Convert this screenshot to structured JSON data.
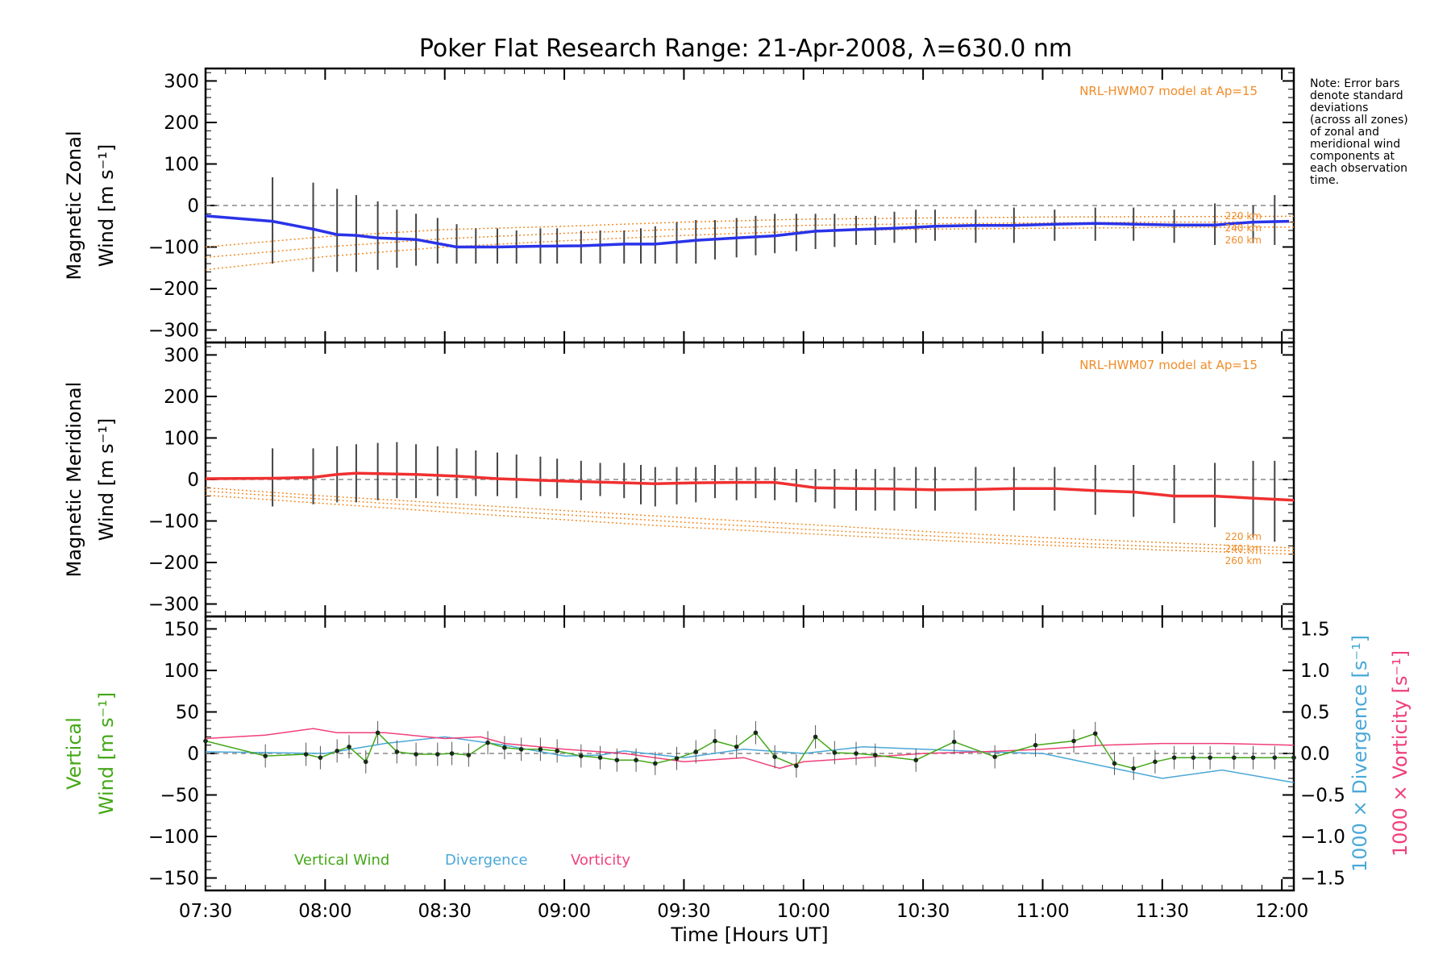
{
  "chart_data": [
    {
      "type": "line",
      "panel": "zonal",
      "title": "Poker Flat Research Range: 21-Apr-2008, λ=630.0 nm",
      "ylabel_line1": "Magnetic Zonal",
      "ylabel_line2": "Wind [m s⁻¹]",
      "ylim": [
        -330,
        330
      ],
      "yticks": [
        "300",
        "200",
        "100",
        "0",
        "−100",
        "−200",
        "−300"
      ],
      "model_label": "NRL-HWM07 model at Ap=15",
      "model_altitude_labels": [
        "220 km",
        "240 km",
        "260 km"
      ],
      "note": [
        "Note: Error bars",
        "denote standard",
        "deviations",
        "(across all zones)",
        "of zonal and",
        "meridional wind",
        "components at",
        "each observation",
        "time."
      ],
      "colors": {
        "mean": "#2a33e8",
        "model": "#f08c28",
        "errorbar": "#444444"
      },
      "series": [
        {
          "x": [
            7.5,
            7.78,
            7.95,
            8.05,
            8.13,
            8.22,
            8.38,
            8.55,
            8.72,
            8.9,
            9.07,
            9.25,
            9.38,
            9.55,
            9.72,
            9.88,
            10.05,
            10.22,
            10.38,
            10.55,
            10.72,
            10.88,
            11.05,
            11.22,
            11.38,
            11.55,
            11.72,
            11.88,
            12.03
          ],
          "y": [
            -25,
            -38,
            -57,
            -70,
            -72,
            -78,
            -82,
            -100,
            -100,
            -98,
            -97,
            -93,
            -93,
            -84,
            -78,
            -73,
            -62,
            -58,
            -55,
            -50,
            -48,
            -48,
            -45,
            -43,
            -45,
            -47,
            -47,
            -40,
            -38
          ]
        }
      ],
      "model": [
        {
          "x": [
            7.5,
            8.0,
            8.5,
            9.0,
            9.5,
            10.0,
            10.5,
            11.0,
            11.5,
            12.05
          ],
          "y": [
            -100,
            -75,
            -58,
            -50,
            -40,
            -33,
            -30,
            -28,
            -27,
            -26
          ]
        },
        {
          "x": [
            7.5,
            8.0,
            8.5,
            9.0,
            9.5,
            10.0,
            10.5,
            11.0,
            11.5,
            12.05
          ],
          "y": [
            -125,
            -100,
            -80,
            -67,
            -57,
            -48,
            -44,
            -42,
            -40,
            -40
          ]
        },
        {
          "x": [
            7.5,
            8.0,
            8.5,
            9.0,
            9.5,
            10.0,
            10.5,
            11.0,
            11.5,
            12.05
          ],
          "y": [
            -155,
            -123,
            -100,
            -85,
            -72,
            -62,
            -57,
            -55,
            -53,
            -52
          ]
        }
      ],
      "errorbars": {
        "x": [
          7.78,
          7.95,
          8.05,
          8.13,
          8.22,
          8.3,
          8.38,
          8.47,
          8.55,
          8.63,
          8.72,
          8.8,
          8.9,
          8.97,
          9.07,
          9.15,
          9.25,
          9.32,
          9.38,
          9.47,
          9.55,
          9.63,
          9.72,
          9.8,
          9.88,
          9.97,
          10.05,
          10.13,
          10.22,
          10.3,
          10.38,
          10.47,
          10.55,
          10.72,
          10.88,
          11.05,
          11.22,
          11.38,
          11.55,
          11.72,
          11.88,
          11.97
        ],
        "lo": [
          -140,
          -160,
          -160,
          -160,
          -155,
          -150,
          -145,
          -140,
          -140,
          -140,
          -140,
          -140,
          -140,
          -140,
          -140,
          -140,
          -140,
          -140,
          -140,
          -140,
          -140,
          -130,
          -125,
          -120,
          -115,
          -110,
          -105,
          -100,
          -95,
          -95,
          -90,
          -90,
          -85,
          -90,
          -90,
          -85,
          -85,
          -85,
          -90,
          -95,
          -90,
          -95
        ],
        "hi": [
          68,
          55,
          40,
          25,
          10,
          -10,
          -20,
          -30,
          -45,
          -55,
          -55,
          -60,
          -55,
          -55,
          -60,
          -60,
          -60,
          -55,
          -50,
          -40,
          -35,
          -35,
          -30,
          -25,
          -20,
          -20,
          -20,
          -20,
          -25,
          -25,
          -15,
          -10,
          -10,
          -10,
          -5,
          -10,
          -5,
          -5,
          -10,
          5,
          0,
          25
        ]
      }
    },
    {
      "type": "line",
      "panel": "meridional",
      "ylabel_line1": "Magnetic Meridional",
      "ylabel_line2": "Wind [m s⁻¹]",
      "ylim": [
        -330,
        330
      ],
      "yticks": [
        "300",
        "200",
        "100",
        "0",
        "−100",
        "−200",
        "−300"
      ],
      "model_label": "NRL-HWM07 model at Ap=15",
      "model_altitude_labels": [
        "220 km",
        "240 km",
        "260 km"
      ],
      "colors": {
        "mean": "#f03030",
        "model": "#f08c28",
        "errorbar": "#444444"
      },
      "series": [
        {
          "x": [
            7.5,
            7.78,
            7.95,
            8.05,
            8.13,
            8.22,
            8.38,
            8.55,
            8.72,
            8.9,
            9.07,
            9.25,
            9.38,
            9.55,
            9.72,
            9.88,
            10.05,
            10.22,
            10.38,
            10.55,
            10.72,
            10.88,
            11.05,
            11.22,
            11.38,
            11.55,
            11.72,
            11.88,
            12.05
          ],
          "y": [
            2,
            3,
            5,
            12,
            15,
            14,
            12,
            8,
            2,
            -2,
            -5,
            -8,
            -10,
            -8,
            -7,
            -7,
            -20,
            -22,
            -23,
            -25,
            -24,
            -22,
            -22,
            -27,
            -30,
            -40,
            -40,
            -45,
            -50
          ]
        }
      ],
      "model": [
        {
          "x": [
            7.5,
            8.0,
            8.5,
            9.0,
            9.5,
            10.0,
            10.5,
            11.0,
            11.5,
            12.05
          ],
          "y": [
            -20,
            -40,
            -57,
            -75,
            -92,
            -108,
            -125,
            -140,
            -152,
            -165
          ]
        },
        {
          "x": [
            7.5,
            8.0,
            8.5,
            9.0,
            9.5,
            10.0,
            10.5,
            11.0,
            11.5,
            12.05
          ],
          "y": [
            -28,
            -48,
            -67,
            -85,
            -103,
            -120,
            -135,
            -150,
            -162,
            -172
          ]
        },
        {
          "x": [
            7.5,
            8.0,
            8.5,
            9.0,
            9.5,
            10.0,
            10.5,
            11.0,
            11.5,
            12.05
          ],
          "y": [
            -38,
            -58,
            -78,
            -97,
            -115,
            -130,
            -145,
            -158,
            -170,
            -180
          ]
        }
      ],
      "errorbars": {
        "x": [
          7.78,
          7.95,
          8.05,
          8.13,
          8.22,
          8.3,
          8.38,
          8.47,
          8.55,
          8.63,
          8.72,
          8.8,
          8.9,
          8.97,
          9.07,
          9.15,
          9.25,
          9.32,
          9.38,
          9.47,
          9.55,
          9.63,
          9.72,
          9.8,
          9.88,
          9.97,
          10.05,
          10.13,
          10.22,
          10.3,
          10.38,
          10.47,
          10.55,
          10.72,
          10.88,
          11.05,
          11.22,
          11.38,
          11.55,
          11.72,
          11.88,
          11.97
        ],
        "lo": [
          -65,
          -60,
          -55,
          -55,
          -50,
          -45,
          -45,
          -40,
          -45,
          -40,
          -40,
          -45,
          -40,
          -45,
          -50,
          -40,
          -45,
          -60,
          -65,
          -60,
          -55,
          -45,
          -50,
          -45,
          -50,
          -55,
          -55,
          -70,
          -75,
          -75,
          -75,
          -70,
          -75,
          -75,
          -75,
          -75,
          -85,
          -90,
          -105,
          -115,
          -140,
          -150
        ],
        "hi": [
          75,
          75,
          80,
          85,
          88,
          90,
          85,
          80,
          75,
          70,
          65,
          60,
          55,
          50,
          45,
          40,
          40,
          35,
          30,
          30,
          30,
          35,
          30,
          30,
          30,
          25,
          25,
          25,
          25,
          25,
          30,
          30,
          30,
          30,
          30,
          30,
          35,
          35,
          35,
          40,
          45,
          45
        ]
      }
    },
    {
      "type": "line",
      "panel": "vertical",
      "xlabel": "Time [Hours UT]",
      "ylabel_left_line1": "Vertical",
      "ylabel_left_line2": "Wind [m s⁻¹]",
      "ylabel_right1": "1000 × Divergence [s⁻¹]",
      "ylabel_right2": "1000 × Vorticity [s⁻¹]",
      "ylim": [
        -165,
        165
      ],
      "y2lim": [
        -1.65,
        1.65
      ],
      "yticks": [
        "150",
        "100",
        "50",
        "0",
        "−50",
        "−100",
        "−150"
      ],
      "y2ticks": [
        "1.5",
        "1.0",
        "0.5",
        "0.0",
        "−0.5",
        "−1.0",
        "−1.5"
      ],
      "xticks": [
        "07:30",
        "08:00",
        "08:30",
        "09:00",
        "09:30",
        "10:00",
        "10:30",
        "11:00",
        "11:30",
        "12:00"
      ],
      "xtick_values": [
        7.5,
        8.0,
        8.5,
        9.0,
        9.5,
        10.0,
        10.5,
        11.0,
        11.5,
        12.0
      ],
      "xlim": [
        7.5,
        12.05
      ],
      "legend": [
        "Vertical Wind",
        "Divergence",
        "Vorticity"
      ],
      "colors": {
        "vertical": "#44a818",
        "divergence": "#4aa8d8",
        "vorticity": "#f0407a",
        "errorbar": "#555555"
      },
      "series": [
        {
          "name": "Vertical Wind",
          "x": [
            7.5,
            7.75,
            7.92,
            7.98,
            8.05,
            8.1,
            8.17,
            8.22,
            8.3,
            8.38,
            8.47,
            8.53,
            8.6,
            8.68,
            8.75,
            8.82,
            8.9,
            8.97,
            9.07,
            9.15,
            9.22,
            9.3,
            9.38,
            9.47,
            9.55,
            9.63,
            9.72,
            9.8,
            9.88,
            9.97,
            10.05,
            10.13,
            10.22,
            10.3,
            10.47,
            10.63,
            10.8,
            10.97,
            11.13,
            11.22,
            11.3,
            11.38,
            11.47,
            11.55,
            11.63,
            11.7,
            11.8,
            11.88,
            11.97,
            12.05
          ],
          "y": [
            15,
            -3,
            -1,
            -5,
            3,
            8,
            -10,
            25,
            2,
            -1,
            -1,
            0,
            -2,
            13,
            7,
            5,
            5,
            3,
            -3,
            -5,
            -8,
            -8,
            -12,
            -6,
            2,
            15,
            8,
            25,
            -4,
            -15,
            20,
            1,
            0,
            -2,
            -8,
            14,
            -4,
            10,
            15,
            24,
            -12,
            -18,
            -10,
            -5,
            -5,
            -5,
            -5,
            -5,
            -5,
            -5
          ]
        },
        {
          "name": "Divergence",
          "x": [
            7.5,
            8.0,
            8.25,
            8.5,
            8.75,
            9.0,
            9.15,
            9.25,
            9.5,
            9.75,
            10.0,
            10.25,
            10.5,
            10.75,
            11.0,
            11.25,
            11.5,
            11.75,
            12.05
          ],
          "y2": [
            0.02,
            0.0,
            0.12,
            0.2,
            0.1,
            -0.03,
            -0.02,
            0.03,
            -0.05,
            0.05,
            0.0,
            0.08,
            0.05,
            0.02,
            0.0,
            -0.15,
            -0.3,
            -0.2,
            -0.35
          ]
        },
        {
          "name": "Vorticity",
          "x": [
            7.5,
            7.75,
            7.95,
            8.05,
            8.25,
            8.5,
            8.65,
            8.75,
            9.0,
            9.25,
            9.5,
            9.75,
            9.9,
            10.0,
            10.25,
            10.5,
            10.75,
            11.0,
            11.25,
            11.5,
            11.75,
            12.05
          ],
          "y2": [
            0.18,
            0.22,
            0.3,
            0.25,
            0.25,
            0.18,
            0.2,
            0.12,
            0.05,
            0.0,
            -0.1,
            -0.05,
            -0.18,
            -0.1,
            -0.05,
            0.0,
            0.02,
            0.05,
            0.1,
            0.12,
            0.12,
            0.1
          ]
        }
      ]
    }
  ]
}
